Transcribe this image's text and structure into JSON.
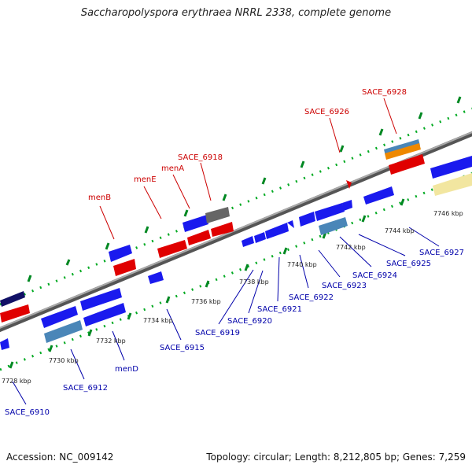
{
  "title": "Saccharopolyspora erythraea NRRL 2338, complete genome",
  "accession": "Accession: NC_009142",
  "topology": "Topology: circular; Length: 8,212,805 bp; Genes: 7,259",
  "colors": {
    "forward": "#e00000",
    "reverse": "#1a1aee",
    "grey": "#666666",
    "light_blue": "#4a86b8",
    "orange": "#ee8800",
    "khaki": "#f2e6a0",
    "navy": "#111166",
    "tick": "#00bb33",
    "top_label": "#cc0000",
    "bottom_label": "#0000aa"
  },
  "ticks": [
    "7728 kbp",
    "7730 kbp",
    "7732 kbp",
    "7734 kbp",
    "7736 kbp",
    "7738 kbp",
    "7740 kbp",
    "7742 kbp",
    "7744 kbp",
    "7746 kbp"
  ],
  "genes_top": [
    "menB",
    "menE",
    "menA",
    "SACE_6918",
    "SACE_6926",
    "SACE_6928"
  ],
  "genes_bottom": [
    "SACE_6910",
    "SACE_6912",
    "menD",
    "SACE_6915",
    "SACE_6919",
    "SACE_6920",
    "SACE_6921",
    "SACE_6922",
    "SACE_6923",
    "SACE_6924",
    "SACE_6925",
    "SACE_6927"
  ]
}
